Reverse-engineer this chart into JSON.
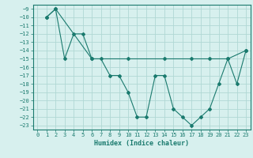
{
  "line1_x": [
    1,
    2,
    3,
    4,
    5,
    6,
    7,
    8,
    9,
    10,
    11,
    12,
    13,
    14,
    15,
    16,
    17,
    18,
    19,
    20,
    21,
    22,
    23
  ],
  "line1_y": [
    -10,
    -9,
    -15,
    -12,
    -12,
    -15,
    -15,
    -17,
    -17,
    -19,
    -22,
    -22,
    -17,
    -17,
    -21,
    -22,
    -23,
    -22,
    -21,
    -18,
    -15,
    -18,
    -14
  ],
  "line2_x": [
    1,
    2,
    6,
    10,
    14,
    17,
    19,
    21,
    23
  ],
  "line2_y": [
    -10,
    -9,
    -15,
    -15,
    -15,
    -15,
    -15,
    -15,
    -14
  ],
  "color": "#1a7a6e",
  "bg_color": "#d7f0ee",
  "grid_color": "#b0d8d4",
  "xlabel": "Humidex (Indice chaleur)",
  "ylim": [
    -23.5,
    -8.5
  ],
  "xlim": [
    -0.5,
    23.5
  ],
  "yticks": [
    -9,
    -10,
    -11,
    -12,
    -13,
    -14,
    -15,
    -16,
    -17,
    -18,
    -19,
    -20,
    -21,
    -22,
    -23
  ],
  "xticks": [
    0,
    1,
    2,
    3,
    4,
    5,
    6,
    7,
    8,
    9,
    10,
    11,
    12,
    13,
    14,
    15,
    16,
    17,
    18,
    19,
    20,
    21,
    22,
    23
  ]
}
